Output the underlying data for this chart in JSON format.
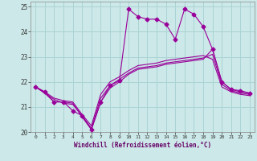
{
  "xlabel": "Windchill (Refroidissement éolien,°C)",
  "background_color": "#cce8e8",
  "grid_color": "#aad4d4",
  "line_color": "#990099",
  "text_color": "#660066",
  "xlim": [
    -0.5,
    23.5
  ],
  "ylim": [
    20,
    25.2
  ],
  "yticks": [
    20,
    21,
    22,
    23,
    24,
    25
  ],
  "xticks": [
    0,
    1,
    2,
    3,
    4,
    5,
    6,
    7,
    8,
    9,
    10,
    11,
    12,
    13,
    14,
    15,
    16,
    17,
    18,
    19,
    20,
    21,
    22,
    23
  ],
  "series": [
    {
      "x": [
        0,
        1,
        2,
        3,
        4,
        5,
        6,
        7,
        8,
        9,
        10,
        11,
        12,
        13,
        14,
        15,
        16,
        17,
        18,
        19,
        20,
        21,
        22,
        23
      ],
      "y": [
        21.8,
        21.55,
        21.2,
        21.2,
        21.15,
        20.6,
        20.1,
        21.2,
        21.75,
        22.0,
        22.3,
        22.5,
        22.55,
        22.6,
        22.7,
        22.75,
        22.8,
        22.85,
        22.9,
        23.3,
        22.0,
        21.7,
        21.6,
        21.55
      ],
      "marker": null
    },
    {
      "x": [
        0,
        1,
        2,
        3,
        4,
        5,
        6,
        7,
        8,
        9,
        10,
        11,
        12,
        13,
        14,
        15,
        16,
        17,
        18,
        19,
        20,
        21,
        22,
        23
      ],
      "y": [
        21.8,
        21.55,
        21.3,
        21.15,
        21.1,
        20.65,
        20.15,
        21.35,
        21.85,
        22.1,
        22.35,
        22.55,
        22.6,
        22.65,
        22.75,
        22.8,
        22.85,
        22.9,
        22.95,
        23.1,
        21.9,
        21.65,
        21.55,
        21.5
      ],
      "marker": null
    },
    {
      "x": [
        0,
        1,
        2,
        3,
        4,
        5,
        6,
        7,
        8,
        9,
        10,
        11,
        12,
        13,
        14,
        15,
        16,
        17,
        18,
        19,
        20,
        21,
        22,
        23
      ],
      "y": [
        21.8,
        21.6,
        21.35,
        21.25,
        21.2,
        20.7,
        20.25,
        21.5,
        22.0,
        22.2,
        22.45,
        22.65,
        22.7,
        22.75,
        22.85,
        22.9,
        22.95,
        23.0,
        23.05,
        22.9,
        21.8,
        21.6,
        21.5,
        21.45
      ],
      "marker": null
    },
    {
      "x": [
        0,
        1,
        2,
        3,
        4,
        5,
        6,
        7,
        8,
        9,
        10,
        11,
        12,
        13,
        14,
        15,
        16,
        17,
        18,
        19,
        20,
        21,
        22,
        23
      ],
      "y": [
        21.8,
        21.6,
        21.2,
        21.2,
        20.85,
        20.65,
        20.1,
        21.2,
        21.85,
        22.05,
        24.9,
        24.6,
        24.5,
        24.5,
        24.3,
        23.7,
        24.9,
        24.7,
        24.2,
        23.3,
        22.0,
        21.7,
        21.65,
        21.55
      ],
      "marker": "D",
      "markersize": 2.5
    }
  ]
}
